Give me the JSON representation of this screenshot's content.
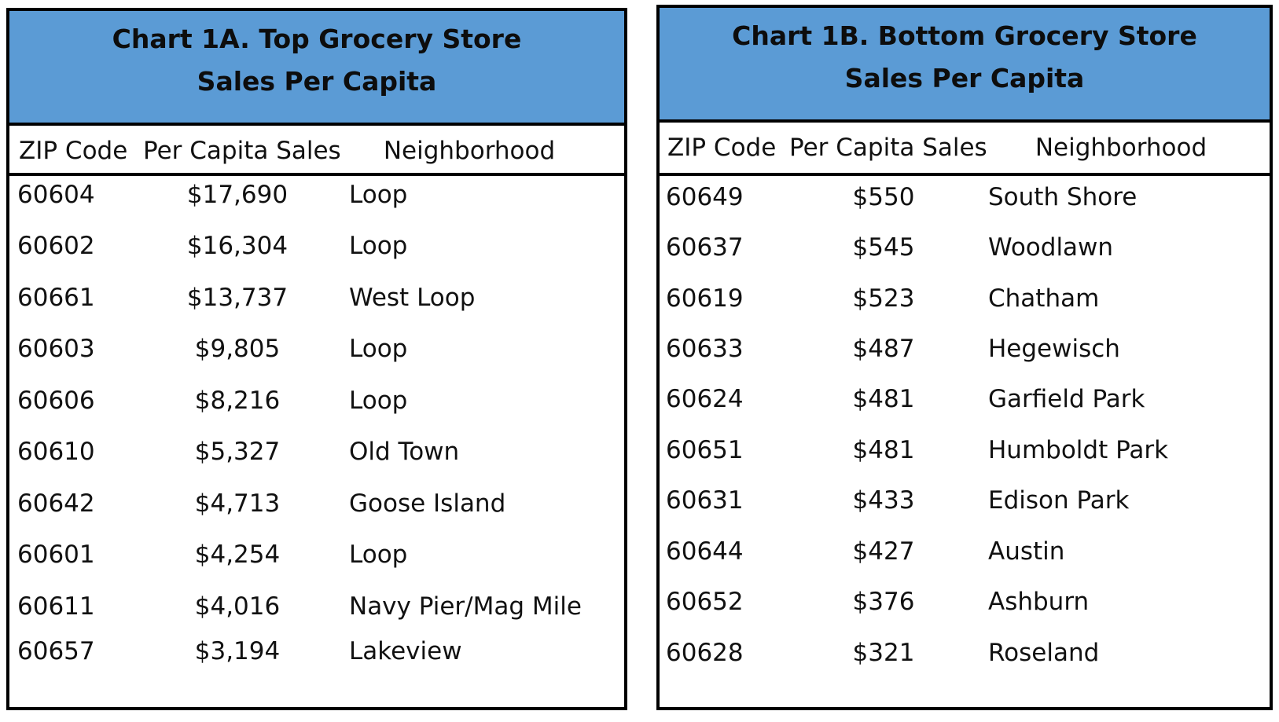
{
  "colors": {
    "title_fill": "#5b9bd5",
    "border": "#000000",
    "text": "#111111"
  },
  "chart_data": [
    {
      "type": "table",
      "title_lines": [
        "Chart 1A. Top Grocery Store",
        "Sales Per Capita"
      ],
      "columns": [
        "ZIP Code",
        "Per Capita Sales",
        "Neighborhood"
      ],
      "rows": [
        {
          "zip": "60604",
          "sales": "$17,690",
          "neighborhood": "Loop"
        },
        {
          "zip": "60602",
          "sales": "$16,304",
          "neighborhood": "Loop"
        },
        {
          "zip": "60661",
          "sales": "$13,737",
          "neighborhood": "West Loop"
        },
        {
          "zip": "60603",
          "sales": "$9,805",
          "neighborhood": "Loop"
        },
        {
          "zip": "60606",
          "sales": "$8,216",
          "neighborhood": "Loop"
        },
        {
          "zip": "60610",
          "sales": "$5,327",
          "neighborhood": "Old Town"
        },
        {
          "zip": "60642",
          "sales": "$4,713",
          "neighborhood": "Goose Island"
        },
        {
          "zip": "60601",
          "sales": "$4,254",
          "neighborhood": "Loop"
        },
        {
          "zip": "60611",
          "sales": "$4,016",
          "neighborhood": "Navy Pier/Mag Mile"
        },
        {
          "zip": "60657",
          "sales": "$3,194",
          "neighborhood": "Lakeview"
        }
      ]
    },
    {
      "type": "table",
      "title_lines": [
        "Chart 1B. Bottom Grocery Store",
        "Sales Per Capita"
      ],
      "columns": [
        "ZIP Code",
        "Per Capita Sales",
        "Neighborhood"
      ],
      "rows": [
        {
          "zip": "60649",
          "sales": "$550",
          "neighborhood": "South Shore"
        },
        {
          "zip": "60637",
          "sales": "$545",
          "neighborhood": "Woodlawn"
        },
        {
          "zip": "60619",
          "sales": "$523",
          "neighborhood": "Chatham"
        },
        {
          "zip": "60633",
          "sales": "$487",
          "neighborhood": "Hegewisch"
        },
        {
          "zip": "60624",
          "sales": "$481",
          "neighborhood": "Garfield Park"
        },
        {
          "zip": "60651",
          "sales": "$481",
          "neighborhood": "Humboldt Park"
        },
        {
          "zip": "60631",
          "sales": "$433",
          "neighborhood": "Edison Park"
        },
        {
          "zip": "60644",
          "sales": "$427",
          "neighborhood": "Austin"
        },
        {
          "zip": "60652",
          "sales": "$376",
          "neighborhood": "Ashburn"
        },
        {
          "zip": "60628",
          "sales": "$321",
          "neighborhood": "Roseland"
        }
      ]
    }
  ]
}
